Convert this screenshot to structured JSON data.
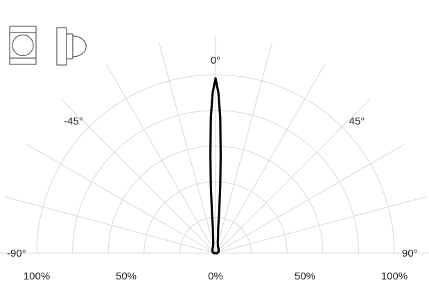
{
  "chart_data": {
    "type": "polar",
    "title": "",
    "angle_labels": [
      {
        "text": "0°",
        "angle": 0
      },
      {
        "text": "-45°",
        "angle": -45
      },
      {
        "text": "45°",
        "angle": 45
      },
      {
        "text": "-90°",
        "angle": -90
      },
      {
        "text": "90°",
        "angle": 90
      }
    ],
    "radial_tick_labels": [
      {
        "text": "100%",
        "value": -100
      },
      {
        "text": "50%",
        "value": -50
      },
      {
        "text": "0%",
        "value": 0
      },
      {
        "text": "50%",
        "value": 50
      },
      {
        "text": "100%",
        "value": 100
      }
    ],
    "radial_range": [
      0,
      100
    ],
    "grid": true,
    "series": [
      {
        "points": [
          {
            "angle": 0,
            "r": 98
          },
          {
            "angle": 1,
            "r": 90
          },
          {
            "angle": 2,
            "r": 76
          },
          {
            "angle": 3,
            "r": 55
          },
          {
            "angle": 4,
            "r": 38
          },
          {
            "angle": 5,
            "r": 23
          },
          {
            "angle": 6,
            "r": 14
          },
          {
            "angle": 8,
            "r": 10
          },
          {
            "angle": 12,
            "r": 6
          },
          {
            "angle": 20,
            "r": 4
          },
          {
            "angle": 35,
            "r": 3
          },
          {
            "angle": 60,
            "r": 2
          },
          {
            "angle": 90,
            "r": 1
          }
        ]
      }
    ]
  },
  "icons": {
    "front_view": "luminaire-front-view-icon",
    "side_view": "luminaire-side-view-icon"
  }
}
